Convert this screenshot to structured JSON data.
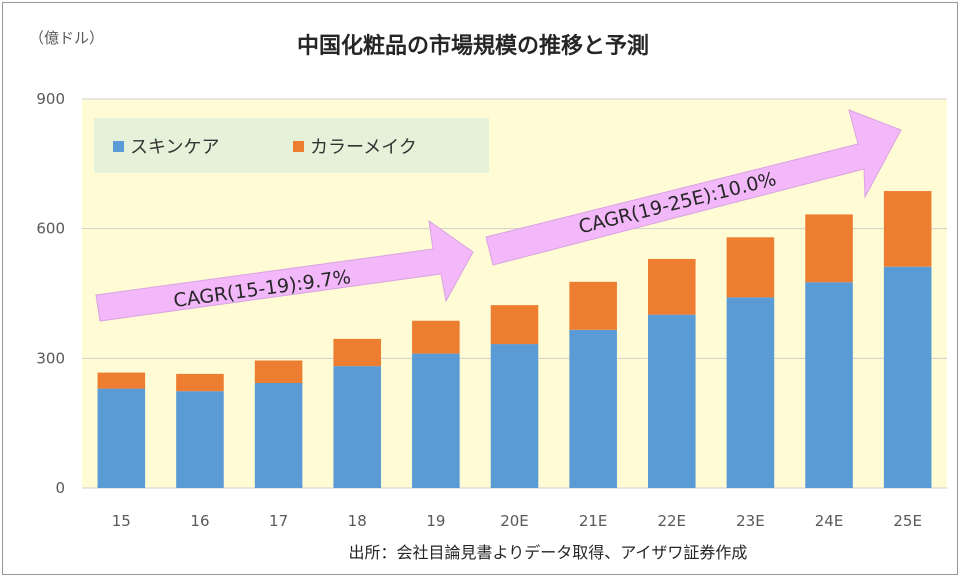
{
  "chart_data": {
    "type": "bar",
    "stacked": true,
    "title": "中国化粧品の市場規模の推移と予測",
    "unit_label": "（億ドル）",
    "categories": [
      "15",
      "16",
      "17",
      "18",
      "19",
      "20E",
      "21E",
      "22E",
      "23E",
      "24E",
      "25E"
    ],
    "series": [
      {
        "name": "スキンケア",
        "color": "#5B9BD5",
        "values": [
          230,
          224,
          243,
          282,
          311,
          333,
          366,
          401,
          441,
          476,
          512
        ]
      },
      {
        "name": "カラーメイク",
        "color": "#ED7D31",
        "values": [
          37,
          40,
          52,
          63,
          76,
          90,
          111,
          129,
          139,
          157,
          175
        ]
      }
    ],
    "ylim": [
      0,
      900
    ],
    "yticks": [
      0,
      300,
      600,
      900
    ],
    "grid": true,
    "plot_background": "#FFFCD5",
    "legend_position": "top-left",
    "annotations": [
      {
        "text": "CAGR(15-19):9.7%",
        "arrow_color": "#F2B8F9"
      },
      {
        "text": "CAGR(19-25E):10.0%",
        "arrow_color": "#F2B8F9"
      }
    ],
    "source": "出所：会社目論見書よりデータ取得、アイザワ証券作成"
  }
}
